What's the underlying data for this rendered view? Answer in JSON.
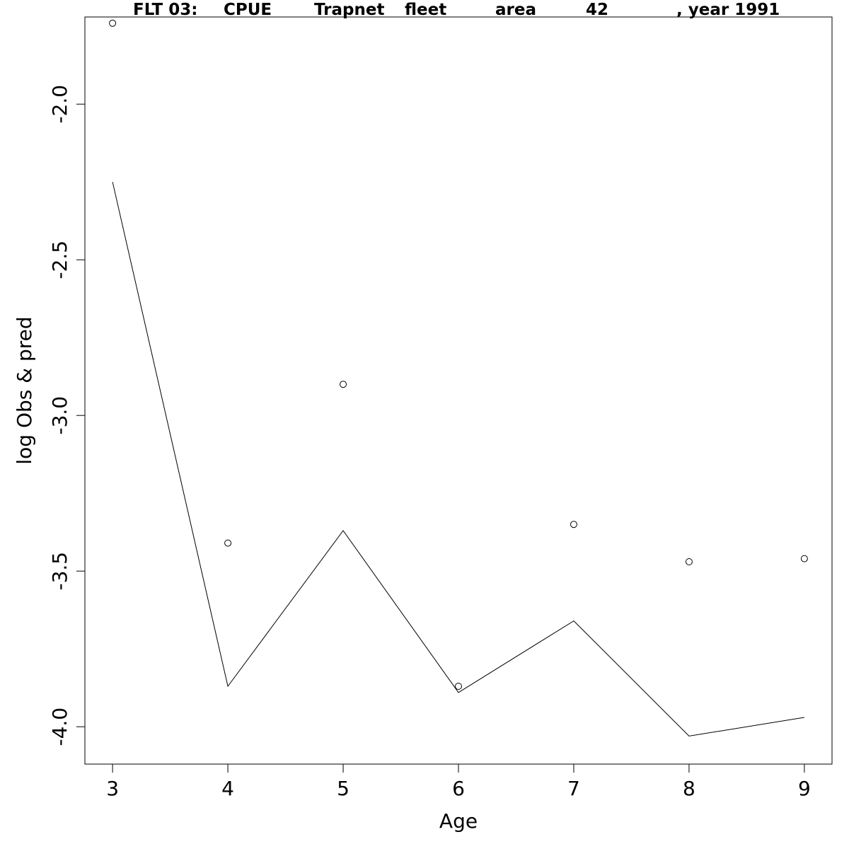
{
  "chart_data": {
    "type": "line",
    "title_parts": [
      "FLT 03:",
      "CPUE",
      "Trapnet",
      "fleet",
      "area",
      "42",
      ", year 1991"
    ],
    "xlabel": "Age",
    "ylabel": "log Obs & pred",
    "x": [
      3,
      4,
      5,
      6,
      7,
      8,
      9
    ],
    "xlim": [
      2.76,
      9.24
    ],
    "ylim": [
      -4.12,
      -1.72
    ],
    "x_ticks": [
      "3",
      "4",
      "5",
      "6",
      "7",
      "8",
      "9"
    ],
    "y_ticks": [
      "-2.0",
      "-2.5",
      "-3.0",
      "-3.5",
      "-4.0"
    ],
    "series": [
      {
        "marker": "open-circle",
        "values": [
          -1.74,
          -3.41,
          -2.9,
          -3.87,
          -3.35,
          -3.47,
          -3.46
        ]
      },
      {
        "marker": "line",
        "values": [
          -2.25,
          -3.87,
          -3.37,
          -3.89,
          -3.66,
          -4.03,
          -3.97
        ]
      }
    ],
    "grid": false,
    "legend": "none"
  }
}
